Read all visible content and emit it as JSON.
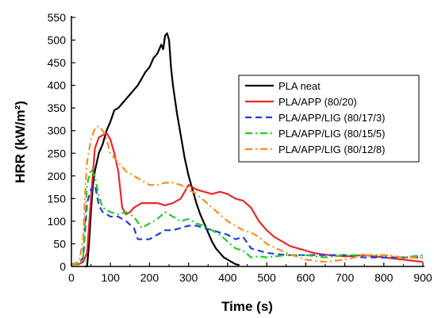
{
  "chart_data": {
    "type": "line",
    "title": "",
    "xlabel": "Time (s)",
    "ylabel": "HRR (kW/m²)",
    "xlim": [
      0,
      900
    ],
    "ylim": [
      0,
      550
    ],
    "xticks": [
      0,
      100,
      200,
      300,
      400,
      500,
      600,
      700,
      800,
      900
    ],
    "yticks": [
      0,
      50,
      100,
      150,
      200,
      250,
      300,
      350,
      400,
      450,
      500,
      550
    ],
    "xtick_labels": [
      "0",
      "100",
      "200",
      "300",
      "400",
      "500",
      "600",
      "700",
      "800",
      "900"
    ],
    "ytick_labels": [
      "0",
      "50",
      "100",
      "150",
      "200",
      "250",
      "300",
      "350",
      "400",
      "450",
      "500",
      "550"
    ],
    "grid": false,
    "legend_position": "right",
    "series": [
      {
        "name": "PLA neat",
        "color": "#000000",
        "dash": "solid",
        "x": [
          35,
          40,
          45,
          50,
          55,
          60,
          65,
          70,
          80,
          90,
          100,
          110,
          120,
          130,
          140,
          150,
          160,
          170,
          180,
          190,
          200,
          210,
          220,
          230,
          235,
          240,
          245,
          250,
          255,
          260,
          270,
          280,
          290,
          300,
          310,
          320,
          330,
          340,
          350,
          360,
          370,
          380,
          390,
          400,
          410,
          420,
          430
        ],
        "y": [
          0,
          0,
          50,
          120,
          180,
          210,
          230,
          250,
          270,
          300,
          320,
          345,
          350,
          360,
          370,
          380,
          390,
          400,
          415,
          430,
          440,
          460,
          470,
          490,
          480,
          510,
          515,
          500,
          440,
          400,
          340,
          290,
          240,
          200,
          170,
          140,
          115,
          95,
          75,
          55,
          40,
          30,
          20,
          15,
          10,
          5,
          3
        ]
      },
      {
        "name": "PLA/APP (80/20)",
        "color": "#e8282b",
        "dash": "solid",
        "x": [
          0,
          20,
          30,
          40,
          50,
          60,
          70,
          80,
          90,
          100,
          110,
          120,
          130,
          140,
          150,
          160,
          180,
          200,
          220,
          240,
          260,
          280,
          300,
          320,
          340,
          360,
          380,
          400,
          420,
          440,
          460,
          480,
          500,
          520,
          540,
          560,
          580,
          600,
          620,
          640,
          660,
          700,
          750,
          800,
          850,
          900
        ],
        "y": [
          5,
          5,
          10,
          30,
          150,
          260,
          285,
          290,
          295,
          280,
          250,
          210,
          130,
          115,
          120,
          130,
          140,
          140,
          140,
          135,
          140,
          150,
          180,
          170,
          165,
          160,
          165,
          160,
          150,
          145,
          130,
          100,
          80,
          65,
          55,
          45,
          40,
          35,
          30,
          27,
          25,
          22,
          25,
          20,
          15,
          10
        ]
      },
      {
        "name": "PLA/APP/LIG (80/17/3)",
        "color": "#1f3fd6",
        "dash": "dash",
        "x": [
          0,
          20,
          30,
          40,
          50,
          60,
          65,
          70,
          80,
          90,
          100,
          120,
          140,
          160,
          170,
          180,
          200,
          220,
          240,
          260,
          280,
          300,
          320,
          340,
          360,
          380,
          400,
          420,
          440,
          460,
          500,
          550,
          600,
          650,
          700,
          750,
          800,
          850,
          900
        ],
        "y": [
          5,
          5,
          20,
          140,
          170,
          180,
          160,
          135,
          120,
          115,
          110,
          110,
          100,
          85,
          60,
          60,
          60,
          70,
          80,
          80,
          85,
          90,
          90,
          85,
          80,
          75,
          70,
          60,
          65,
          40,
          30,
          25,
          25,
          25,
          25,
          20,
          20,
          20,
          20
        ]
      },
      {
        "name": "PLA/APP/LIG (80/15/5)",
        "color": "#22cc22",
        "dash": "dashdot",
        "x": [
          0,
          20,
          30,
          40,
          50,
          60,
          70,
          80,
          90,
          100,
          120,
          140,
          160,
          180,
          200,
          220,
          240,
          260,
          280,
          300,
          320,
          340,
          360,
          380,
          400,
          420,
          440,
          460,
          480,
          500,
          550,
          600,
          650,
          700,
          750,
          800,
          850,
          900
        ],
        "y": [
          5,
          5,
          20,
          180,
          215,
          200,
          155,
          130,
          125,
          120,
          115,
          120,
          110,
          85,
          95,
          105,
          120,
          110,
          100,
          105,
          95,
          90,
          80,
          70,
          55,
          40,
          35,
          20,
          22,
          20,
          25,
          25,
          20,
          25,
          25,
          25,
          20,
          25
        ]
      },
      {
        "name": "PLA/APP/LIG (80/12/8)",
        "color": "#ff8c1a",
        "dash": "dashdot",
        "x": [
          0,
          20,
          30,
          35,
          40,
          50,
          60,
          70,
          80,
          90,
          100,
          120,
          140,
          160,
          180,
          200,
          220,
          240,
          260,
          280,
          300,
          320,
          340,
          360,
          380,
          400,
          420,
          440,
          460,
          480,
          500,
          550,
          600,
          650,
          700,
          750,
          800,
          850,
          900
        ],
        "y": [
          5,
          10,
          60,
          160,
          230,
          280,
          305,
          310,
          300,
          280,
          250,
          230,
          210,
          200,
          190,
          180,
          180,
          185,
          185,
          180,
          170,
          160,
          145,
          130,
          115,
          100,
          90,
          80,
          75,
          65,
          50,
          30,
          15,
          10,
          15,
          25,
          25,
          20,
          20
        ]
      }
    ]
  }
}
